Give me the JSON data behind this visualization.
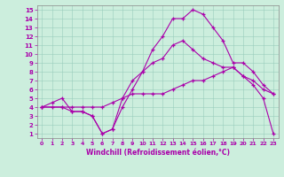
{
  "xlabel": "Windchill (Refroidissement éolien,°C)",
  "xlim": [
    -0.5,
    23.5
  ],
  "ylim": [
    0.5,
    15.5
  ],
  "xticks": [
    0,
    1,
    2,
    3,
    4,
    5,
    6,
    7,
    8,
    9,
    10,
    11,
    12,
    13,
    14,
    15,
    16,
    17,
    18,
    19,
    20,
    21,
    22,
    23
  ],
  "yticks": [
    1,
    2,
    3,
    4,
    5,
    6,
    7,
    8,
    9,
    10,
    11,
    12,
    13,
    14,
    15
  ],
  "bg_color": "#cceedd",
  "line_color": "#aa00aa",
  "line1_x": [
    0,
    1,
    2,
    3,
    4,
    5,
    6,
    7,
    8,
    9,
    10,
    11,
    12,
    13,
    14,
    15,
    16,
    17,
    18,
    19,
    20,
    21,
    22,
    23
  ],
  "line1_y": [
    4,
    4.5,
    5,
    3.5,
    3.5,
    3,
    1,
    1.5,
    5,
    7,
    8,
    9,
    9.5,
    11,
    11.5,
    10.5,
    9.5,
    9,
    8.5,
    8.5,
    7.5,
    7,
    6,
    5.5
  ],
  "line2_x": [
    0,
    2,
    3,
    4,
    5,
    6,
    7,
    8,
    9,
    10,
    11,
    12,
    13,
    14,
    15,
    16,
    17,
    18,
    19,
    20,
    21,
    22,
    23
  ],
  "line2_y": [
    4,
    4,
    3.5,
    3.5,
    3,
    1,
    1.5,
    4,
    6,
    8,
    10.5,
    12,
    14,
    14,
    15,
    14.5,
    13,
    11.5,
    9,
    9,
    8,
    6.5,
    5.5
  ],
  "line3_x": [
    0,
    1,
    2,
    3,
    4,
    5,
    6,
    7,
    8,
    9,
    10,
    11,
    12,
    13,
    14,
    15,
    16,
    17,
    18,
    19,
    20,
    21,
    22,
    23
  ],
  "line3_y": [
    4,
    4,
    4,
    4,
    4,
    4,
    4,
    4.5,
    5,
    5.5,
    5.5,
    5.5,
    5.5,
    6,
    6.5,
    7,
    7,
    7.5,
    8,
    8.5,
    7.5,
    6.5,
    5,
    1
  ]
}
